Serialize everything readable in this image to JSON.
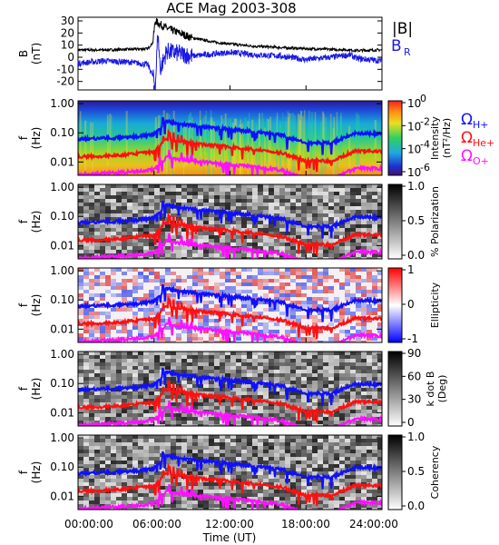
{
  "title": "ACE Mag 2003-308",
  "colors": {
    "total_b": "#000000",
    "b_r": "#1a1ae6",
    "omega_h": "#1010ff",
    "omega_he": "#ff1010",
    "omega_o": "#ff10ff"
  },
  "x_axis": {
    "label": "Time (UT)",
    "ticks": [
      "00:00:00",
      "06:00:00",
      "12:00:00",
      "18:00:00",
      "24:00:00"
    ],
    "range_hours": [
      0,
      24
    ]
  },
  "b_panel": {
    "ylabel_1": "B",
    "ylabel_2": "(nT)",
    "ticks": [
      "30",
      "20",
      "10",
      "0",
      "-10",
      "-20"
    ],
    "ylim": [
      -27,
      33
    ],
    "legend_total": "|B|",
    "legend_br": "B",
    "legend_br_sub": "R"
  },
  "freq_axis": {
    "ylabel_1": "f",
    "ylabel_2": "(Hz)",
    "ticks": [
      "1.00",
      "0.10",
      "0.01"
    ]
  },
  "gyro_legend": {
    "h_symbol": "Ω",
    "h_sub": "H+",
    "he_symbol": "Ω",
    "he_sub": "He+",
    "o_symbol": "Ω",
    "o_sub": "O+"
  },
  "colorbars": {
    "intensity": {
      "label_1": "Intensity",
      "label_2": "(nT²/Hz)",
      "ticks": [
        {
          "base": "10",
          "exp": "0"
        },
        {
          "base": "10",
          "exp": "-2"
        },
        {
          "base": "10",
          "exp": "-4"
        },
        {
          "base": "10",
          "exp": "-6"
        }
      ]
    },
    "polarization": {
      "label": "% Polarization",
      "ticks": [
        "1.0",
        "0.5",
        "0.0"
      ]
    },
    "ellipticity": {
      "label": "Ellipticity",
      "ticks": [
        "1",
        "0",
        "-1"
      ]
    },
    "kdotb": {
      "label_1": "k dot B",
      "label_2": "(Deg)",
      "ticks": [
        "90",
        "60",
        "30",
        "0"
      ]
    },
    "coherency": {
      "label": "Coherency",
      "ticks": [
        "1.0",
        "0.5",
        "0.0"
      ]
    }
  },
  "chart_data": [
    {
      "type": "line",
      "title": "ACE Mag 2003-308",
      "xlabel": "",
      "ylabel": "B (nT)",
      "xlim": [
        0,
        24
      ],
      "ylim": [
        -27,
        33
      ],
      "series": [
        {
          "name": "|B|",
          "x": [
            0,
            2,
            4,
            5.5,
            5.9,
            6.1,
            6.5,
            7,
            8,
            9,
            10,
            11,
            12,
            13,
            14,
            16,
            18,
            20,
            21.5,
            22,
            24
          ],
          "y": [
            6,
            6,
            6.5,
            7,
            12,
            30,
            27,
            24,
            20,
            16,
            14,
            12,
            11,
            10,
            9,
            8,
            7,
            6.5,
            6,
            5.5,
            6
          ]
        },
        {
          "name": "B_R",
          "x": [
            0,
            2,
            4,
            5.5,
            5.9,
            6.1,
            6.3,
            6.5,
            7,
            8,
            9,
            10,
            11,
            12,
            13,
            14,
            16,
            18,
            20,
            21.5,
            22,
            24
          ],
          "y": [
            -5,
            -3,
            -4,
            -6,
            -15,
            -25,
            20,
            -10,
            5,
            3,
            1,
            2,
            3,
            4,
            3,
            2,
            1,
            -2,
            0,
            2,
            -1,
            -3
          ]
        }
      ]
    },
    {
      "type": "heatmap",
      "ylabel": "f (Hz)",
      "colorbar": "Intensity (nT²/Hz)",
      "series": [
        {
          "name": "H+",
          "x": [
            0,
            2,
            4,
            6,
            7,
            8,
            10,
            12,
            14,
            16,
            18,
            20,
            22,
            24
          ],
          "y": [
            0.06,
            0.065,
            0.07,
            0.09,
            0.25,
            0.2,
            0.16,
            0.13,
            0.11,
            0.085,
            0.045,
            0.045,
            0.1,
            0.09
          ]
        },
        {
          "name": "He+",
          "x": [
            0,
            2,
            4,
            6,
            7,
            8,
            10,
            12,
            14,
            16,
            18,
            20,
            22,
            24
          ],
          "y": [
            0.015,
            0.016,
            0.018,
            0.023,
            0.06,
            0.05,
            0.04,
            0.033,
            0.027,
            0.021,
            0.011,
            0.011,
            0.025,
            0.023
          ]
        },
        {
          "name": "O+",
          "x": [
            0,
            2,
            4,
            6,
            7,
            8,
            10,
            12,
            14,
            16,
            18,
            20,
            22,
            24
          ],
          "y": [
            0.0038,
            0.004,
            0.0045,
            0.0056,
            0.015,
            0.012,
            0.01,
            0.008,
            0.0068,
            0.0053,
            0.0028,
            0.0028,
            0.0063,
            0.0058
          ]
        }
      ]
    },
    {
      "type": "heatmap",
      "ylabel": "f (Hz)",
      "colorbar": "% Polarization",
      "zlim": [
        0,
        1
      ]
    },
    {
      "type": "heatmap",
      "ylabel": "f (Hz)",
      "colorbar": "Ellipticity",
      "zlim": [
        -1,
        1
      ]
    },
    {
      "type": "heatmap",
      "ylabel": "f (Hz)",
      "colorbar": "k dot B (Deg)",
      "zlim": [
        0,
        90
      ]
    },
    {
      "type": "heatmap",
      "ylabel": "f (Hz)",
      "colorbar": "Coherency",
      "zlim": [
        0,
        1
      ]
    }
  ]
}
